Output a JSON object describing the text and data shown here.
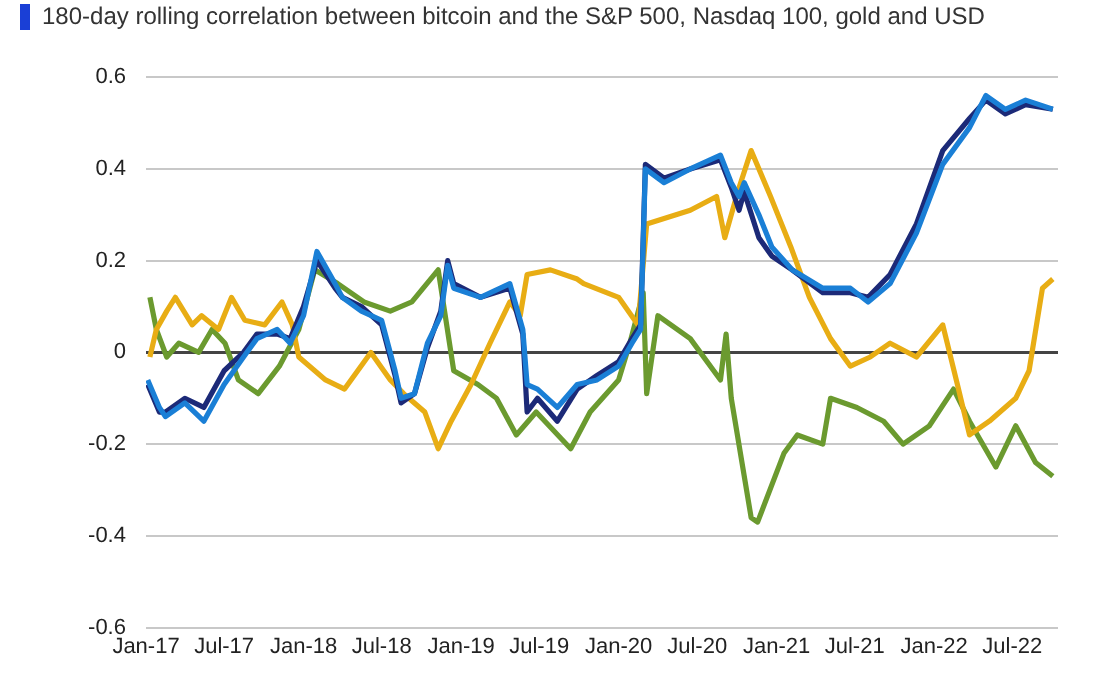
{
  "chart_data": {
    "type": "line",
    "title": "180-day rolling correlation between bitcoin and the S&P 500, Nasdaq 100, gold and USD",
    "ylim": [
      -0.6,
      0.6
    ],
    "yticks": [
      -0.6,
      -0.4,
      -0.2,
      0,
      0.2,
      0.4,
      0.6
    ],
    "xlim": [
      "2017-01-01",
      "2022-10-15"
    ],
    "xticks": [
      {
        "value": "2017-01-01",
        "label": "Jan-17"
      },
      {
        "value": "2017-07-01",
        "label": "Jul-17"
      },
      {
        "value": "2018-01-01",
        "label": "Jan-18"
      },
      {
        "value": "2018-07-01",
        "label": "Jul-18"
      },
      {
        "value": "2019-01-01",
        "label": "Jan-19"
      },
      {
        "value": "2019-07-01",
        "label": "Jul-19"
      },
      {
        "value": "2020-01-01",
        "label": "Jan-20"
      },
      {
        "value": "2020-07-01",
        "label": "Jul-20"
      },
      {
        "value": "2021-01-01",
        "label": "Jan-21"
      },
      {
        "value": "2021-07-01",
        "label": "Jul-21"
      },
      {
        "value": "2022-01-01",
        "label": "Jan-22"
      },
      {
        "value": "2022-07-01",
        "label": "Jul-22"
      }
    ],
    "grid": "y",
    "legend": false,
    "marker": "none",
    "line_style": "solid",
    "series": [
      {
        "color": "#1a7fd6",
        "x": [
          "2017-01-05",
          "2017-02-01",
          "2017-02-15",
          "2017-04-01",
          "2017-05-15",
          "2017-07-01",
          "2017-08-15",
          "2017-09-15",
          "2017-11-01",
          "2017-12-01",
          "2018-01-01",
          "2018-02-01",
          "2018-03-15",
          "2018-04-01",
          "2018-05-15",
          "2018-07-01",
          "2018-08-01",
          "2018-08-15",
          "2018-09-15",
          "2018-10-15",
          "2018-11-15",
          "2018-12-01",
          "2018-12-15",
          "2019-02-15",
          "2019-04-24",
          "2019-05-24",
          "2019-06-03",
          "2019-06-27",
          "2019-08-12",
          "2019-09-27",
          "2019-11-12",
          "2020-01-01",
          "2020-02-01",
          "2020-02-21",
          "2020-03-03",
          "2020-04-15",
          "2020-06-15",
          "2020-08-24",
          "2020-09-18",
          "2020-10-06",
          "2020-10-18",
          "2020-11-21",
          "2020-12-21",
          "2021-02-06",
          "2021-04-18",
          "2021-06-21",
          "2021-08-01",
          "2021-09-21",
          "2021-11-21",
          "2022-01-21",
          "2022-03-24",
          "2022-05-01",
          "2022-06-15",
          "2022-08-01",
          "2022-10-03"
        ],
        "values": [
          -0.06,
          -0.12,
          -0.14,
          -0.11,
          -0.15,
          -0.07,
          -0.01,
          0.03,
          0.05,
          0.02,
          0.08,
          0.22,
          0.15,
          0.12,
          0.09,
          0.07,
          -0.04,
          -0.1,
          -0.09,
          0.02,
          0.08,
          0.19,
          0.14,
          0.12,
          0.15,
          0.05,
          -0.07,
          -0.08,
          -0.12,
          -0.07,
          -0.06,
          -0.03,
          0.02,
          0.05,
          0.4,
          0.37,
          0.4,
          0.43,
          0.37,
          0.34,
          0.37,
          0.3,
          0.23,
          0.18,
          0.14,
          0.14,
          0.11,
          0.15,
          0.26,
          0.41,
          0.49,
          0.56,
          0.53,
          0.55,
          0.53
        ]
      },
      {
        "color": "#1c2a78",
        "x": [
          "2017-01-05",
          "2017-02-01",
          "2017-02-15",
          "2017-04-01",
          "2017-05-15",
          "2017-07-01",
          "2017-08-15",
          "2017-09-15",
          "2017-11-01",
          "2017-12-01",
          "2018-01-01",
          "2018-02-01",
          "2018-03-15",
          "2018-04-01",
          "2018-05-15",
          "2018-07-01",
          "2018-08-01",
          "2018-08-15",
          "2018-09-15",
          "2018-10-15",
          "2018-11-15",
          "2018-12-01",
          "2018-12-15",
          "2019-02-15",
          "2019-04-24",
          "2019-05-24",
          "2019-06-03",
          "2019-06-27",
          "2019-08-12",
          "2019-09-27",
          "2019-11-12",
          "2020-01-01",
          "2020-02-01",
          "2020-02-21",
          "2020-03-03",
          "2020-04-15",
          "2020-06-15",
          "2020-08-24",
          "2020-09-18",
          "2020-10-06",
          "2020-10-18",
          "2020-11-21",
          "2020-12-21",
          "2021-02-06",
          "2021-04-18",
          "2021-06-21",
          "2021-08-01",
          "2021-09-21",
          "2021-11-21",
          "2022-01-21",
          "2022-03-24",
          "2022-05-01",
          "2022-06-15",
          "2022-08-01",
          "2022-10-03"
        ],
        "values": [
          -0.07,
          -0.13,
          -0.13,
          -0.1,
          -0.12,
          -0.04,
          0.0,
          0.04,
          0.04,
          0.03,
          0.1,
          0.2,
          0.14,
          0.12,
          0.1,
          0.06,
          -0.05,
          -0.11,
          -0.09,
          0.01,
          0.09,
          0.2,
          0.15,
          0.12,
          0.14,
          0.04,
          -0.13,
          -0.1,
          -0.15,
          -0.08,
          -0.05,
          -0.02,
          0.03,
          0.06,
          0.41,
          0.38,
          0.4,
          0.42,
          0.36,
          0.31,
          0.35,
          0.25,
          0.21,
          0.18,
          0.13,
          0.13,
          0.12,
          0.17,
          0.28,
          0.44,
          0.51,
          0.55,
          0.52,
          0.54,
          0.53
        ]
      },
      {
        "color": "#e8ad14",
        "x": [
          "2017-01-10",
          "2017-01-25",
          "2017-02-18",
          "2017-03-10",
          "2017-04-18",
          "2017-05-10",
          "2017-06-18",
          "2017-07-18",
          "2017-08-18",
          "2017-10-03",
          "2017-11-12",
          "2017-12-06",
          "2017-12-21",
          "2018-02-21",
          "2018-04-06",
          "2018-06-06",
          "2018-07-21",
          "2018-08-21",
          "2018-10-09",
          "2018-11-09",
          "2018-12-09",
          "2019-01-24",
          "2019-03-09",
          "2019-04-24",
          "2019-05-18",
          "2019-06-03",
          "2019-07-27",
          "2019-09-27",
          "2019-10-12",
          "2020-01-01",
          "2020-02-15",
          "2020-03-06",
          "2020-06-15",
          "2020-08-15",
          "2020-09-03",
          "2020-10-03",
          "2020-11-03",
          "2020-12-18",
          "2021-02-03",
          "2021-03-18",
          "2021-05-06",
          "2021-06-21",
          "2021-08-06",
          "2021-09-21",
          "2021-11-21",
          "2022-01-21",
          "2022-02-24",
          "2022-03-24",
          "2022-05-09",
          "2022-07-09",
          "2022-08-09",
          "2022-09-09",
          "2022-10-03"
        ],
        "values": [
          -0.01,
          0.05,
          0.09,
          0.12,
          0.06,
          0.08,
          0.05,
          0.12,
          0.07,
          0.06,
          0.11,
          0.06,
          -0.01,
          -0.06,
          -0.08,
          0.0,
          -0.06,
          -0.09,
          -0.13,
          -0.21,
          -0.15,
          -0.07,
          0.02,
          0.11,
          0.08,
          0.17,
          0.18,
          0.16,
          0.15,
          0.12,
          0.06,
          0.28,
          0.31,
          0.34,
          0.25,
          0.35,
          0.44,
          0.34,
          0.23,
          0.12,
          0.03,
          -0.03,
          -0.01,
          0.02,
          -0.01,
          0.06,
          -0.07,
          -0.18,
          -0.15,
          -0.1,
          -0.04,
          0.14,
          0.16
        ]
      },
      {
        "color": "#6b9a2f",
        "x": [
          "2017-01-10",
          "2017-01-25",
          "2017-02-18",
          "2017-03-18",
          "2017-05-03",
          "2017-06-03",
          "2017-07-03",
          "2017-08-03",
          "2017-09-18",
          "2017-11-06",
          "2017-12-21",
          "2018-01-27",
          "2018-03-21",
          "2018-05-21",
          "2018-07-21",
          "2018-09-09",
          "2018-11-09",
          "2018-12-15",
          "2019-02-09",
          "2019-03-24",
          "2019-05-09",
          "2019-06-24",
          "2019-09-12",
          "2019-10-27",
          "2020-01-01",
          "2020-01-27",
          "2020-02-27",
          "2020-03-06",
          "2020-04-01",
          "2020-06-15",
          "2020-08-24",
          "2020-09-06",
          "2020-09-18",
          "2020-11-03",
          "2020-11-18",
          "2021-01-18",
          "2021-02-18",
          "2021-04-18",
          "2021-05-06",
          "2021-07-06",
          "2021-09-06",
          "2021-10-21",
          "2021-12-21",
          "2022-02-15",
          "2022-03-24",
          "2022-05-24",
          "2022-07-09",
          "2022-08-24",
          "2022-10-03"
        ],
        "values": [
          0.12,
          0.05,
          -0.01,
          0.02,
          0.0,
          0.05,
          0.02,
          -0.06,
          -0.09,
          -0.03,
          0.05,
          0.18,
          0.15,
          0.11,
          0.09,
          0.11,
          0.18,
          -0.04,
          -0.07,
          -0.1,
          -0.18,
          -0.13,
          -0.21,
          -0.13,
          -0.06,
          0.02,
          0.13,
          -0.09,
          0.08,
          0.03,
          -0.06,
          0.04,
          -0.1,
          -0.36,
          -0.37,
          -0.22,
          -0.18,
          -0.2,
          -0.1,
          -0.12,
          -0.15,
          -0.2,
          -0.16,
          -0.08,
          -0.15,
          -0.25,
          -0.16,
          -0.24,
          -0.27
        ]
      }
    ]
  }
}
